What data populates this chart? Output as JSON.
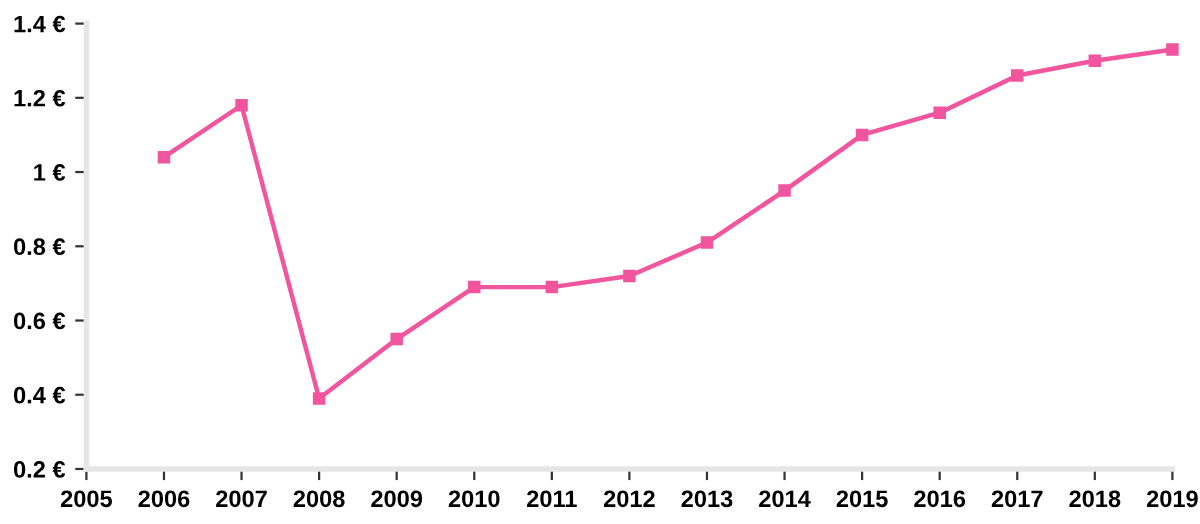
{
  "chart_data": {
    "type": "line",
    "x": [
      2006,
      2007,
      2008,
      2009,
      2010,
      2011,
      2012,
      2013,
      2014,
      2015,
      2016,
      2017,
      2018,
      2019
    ],
    "series": [
      {
        "color": "#f0559e",
        "values": [
          1.04,
          1.18,
          0.39,
          0.55,
          0.69,
          0.69,
          0.72,
          0.81,
          0.95,
          1.1,
          1.16,
          1.26,
          1.3,
          1.33
        ]
      }
    ],
    "xlim": [
      2005,
      2019
    ],
    "xticks": [
      2005,
      2006,
      2007,
      2008,
      2009,
      2010,
      2011,
      2012,
      2013,
      2014,
      2015,
      2016,
      2017,
      2018,
      2019
    ],
    "ylim": [
      0.2,
      1.4
    ],
    "yticks": [
      {
        "value": 0.2,
        "label": "0.2 €"
      },
      {
        "value": 0.4,
        "label": "0.4 €"
      },
      {
        "value": 0.6,
        "label": "0.6 €"
      },
      {
        "value": 0.8,
        "label": "0.8 €"
      },
      {
        "value": 1,
        "label": "1 €"
      },
      {
        "value": 1.2,
        "label": "1.2 €"
      },
      {
        "value": 1.4,
        "label": "1.4 €"
      }
    ],
    "marker": "square",
    "line_style": "solid",
    "grid": false,
    "legend": false
  }
}
